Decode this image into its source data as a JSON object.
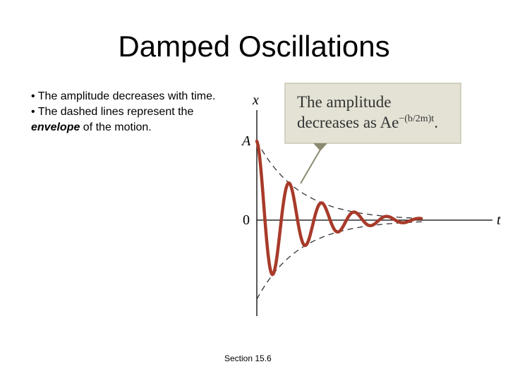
{
  "title": "Damped Oscillations",
  "bullets": {
    "b1": "The amplitude decreases with time.",
    "b2_pre": "The dashed lines represent the",
    "b2_em": "envelope",
    "b2_post": " of the motion."
  },
  "diagram": {
    "axis_x_label": "x",
    "axis_t_label": "t",
    "amplitude_label": "A",
    "zero_label": "0",
    "callout": {
      "line1": "The amplitude",
      "line2_text": "decreases as Ae",
      "exponent": "−(b/2m)t",
      "period": "."
    },
    "colors": {
      "curve": "#a83a2a",
      "callout_bg": "#e4e2d4",
      "callout_border": "#c8c6b2",
      "pointer": "#8a8a70",
      "axis": "#000000",
      "envelope": "#333333"
    }
  },
  "footer": "Section  15.6"
}
